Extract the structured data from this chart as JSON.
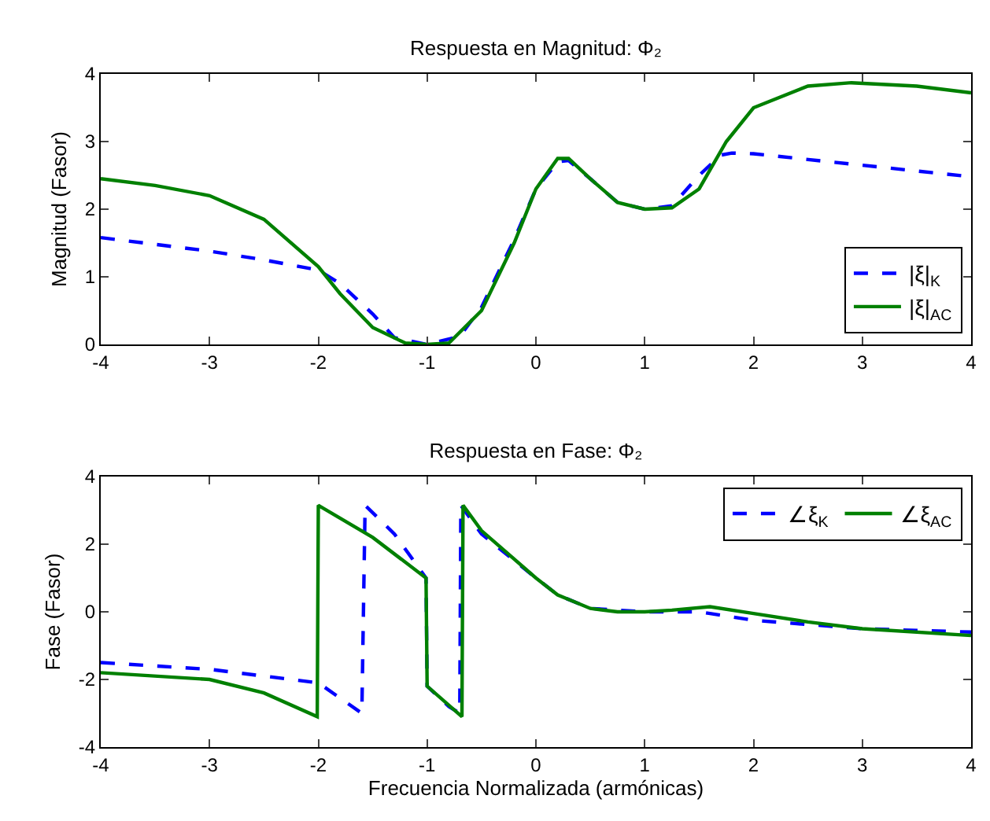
{
  "chart_data": [
    {
      "type": "line",
      "title": "Respuesta en Magnitud: Φ₂",
      "ylabel": "Magnitud (Fasor)",
      "xlim": [
        -4,
        4
      ],
      "xticks": [
        -4,
        -3,
        -2,
        -1,
        0,
        1,
        2,
        3,
        4
      ],
      "ylim": [
        0,
        4
      ],
      "yticks": [
        0,
        1,
        2,
        3,
        4
      ],
      "grid": false,
      "legend": "bottom right",
      "series": [
        {
          "name": "|ξ|$_{K}$",
          "color": "#0000ff",
          "line_style": "dashed",
          "x": [
            -4,
            -3.5,
            -3,
            -2.5,
            -2,
            -1.8,
            -1.5,
            -1.3,
            -1,
            -0.7,
            -0.5,
            -0.2,
            0,
            0.2,
            0.3,
            0.5,
            0.75,
            1,
            1.25,
            1.5,
            1.7,
            1.8,
            2,
            3,
            4
          ],
          "values": [
            1.58,
            1.48,
            1.38,
            1.25,
            1.1,
            0.9,
            0.45,
            0.1,
            0,
            0.12,
            0.55,
            1.55,
            2.3,
            2.7,
            2.72,
            2.45,
            2.1,
            2.0,
            2.05,
            2.5,
            2.8,
            2.83,
            2.82,
            2.65,
            2.48
          ]
        },
        {
          "name": "|ξ|$_{A}$$_{C}$",
          "color": "#008000",
          "line_style": "solid",
          "x": [
            -4,
            -3.5,
            -3,
            -2.5,
            -2,
            -1.8,
            -1.5,
            -1.2,
            -1,
            -0.8,
            -0.5,
            -0.2,
            0,
            0.2,
            0.3,
            0.5,
            0.75,
            1,
            1.25,
            1.5,
            1.75,
            2,
            2.5,
            2.9,
            3.5,
            4
          ],
          "values": [
            2.45,
            2.35,
            2.2,
            1.85,
            1.15,
            0.75,
            0.25,
            0.02,
            0,
            0.02,
            0.5,
            1.5,
            2.3,
            2.75,
            2.75,
            2.45,
            2.1,
            2.0,
            2.02,
            2.3,
            3.0,
            3.5,
            3.82,
            3.87,
            3.82,
            3.72
          ]
        }
      ]
    },
    {
      "type": "line",
      "title": "Respuesta en Fase: Φ₂",
      "xlabel": "Frecuencia Normalizada (armónicas)",
      "ylabel": "Fase (Fasor)",
      "xlim": [
        -4,
        4
      ],
      "xticks": [
        -4,
        -3,
        -2,
        -1,
        0,
        1,
        2,
        3,
        4
      ],
      "ylim": [
        -4,
        4
      ],
      "yticks": [
        -4,
        -2,
        0,
        2,
        4
      ],
      "grid": false,
      "legend": "top right",
      "series": [
        {
          "name": "∠ξ$_{K}$",
          "color": "#0000ff",
          "line_style": "dashed",
          "x": [
            -4,
            -3,
            -2,
            -1.6,
            -1.57,
            -1.3,
            -1.01,
            -1,
            -0.8,
            -0.7,
            -0.69,
            -0.5,
            0,
            0.2,
            0.5,
            1,
            1.5,
            1.6,
            2,
            3,
            4
          ],
          "values": [
            -1.5,
            -1.7,
            -2.1,
            -3.0,
            3.15,
            2.3,
            1.0,
            -2.2,
            -2.8,
            -3.0,
            3.15,
            2.3,
            1.0,
            0.5,
            0.1,
            0,
            0.0,
            -0.05,
            -0.25,
            -0.5,
            -0.6
          ]
        },
        {
          "name": "∠ξ$_{A}$$_{C}$",
          "color": "#008000",
          "line_style": "solid",
          "x": [
            -4,
            -3,
            -2.5,
            -2.01,
            -2,
            -1.5,
            -1.01,
            -1,
            -0.68,
            -0.67,
            -0.5,
            0,
            0.2,
            0.5,
            0.75,
            1,
            1.25,
            1.6,
            2,
            2.5,
            3,
            4
          ],
          "values": [
            -1.8,
            -2.0,
            -2.4,
            -3.1,
            3.15,
            2.2,
            1.0,
            -2.2,
            -3.1,
            3.15,
            2.4,
            1.0,
            0.5,
            0.1,
            0.0,
            0.0,
            0.05,
            0.15,
            -0.05,
            -0.3,
            -0.5,
            -0.7
          ]
        }
      ]
    }
  ]
}
